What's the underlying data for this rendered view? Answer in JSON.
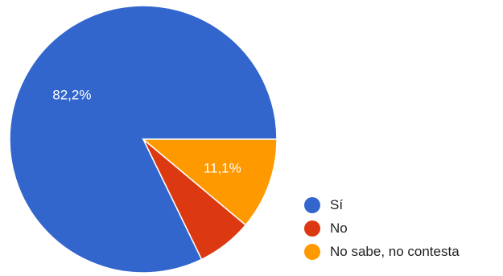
{
  "chart_data": {
    "type": "pie",
    "title": "",
    "slices": [
      {
        "label": "Sí",
        "value": 82.2,
        "value_label": "82,2%",
        "color": "#3366cc"
      },
      {
        "label": "No",
        "value": 6.7,
        "value_label": "",
        "color": "#dc3912"
      },
      {
        "label": "No sabe, no contesta",
        "value": 11.1,
        "value_label": "11,1%",
        "color": "#ff9900"
      }
    ],
    "start_angle": "90° clockwise from top (3 o'clock)",
    "legend": {
      "position": "bottom-right"
    }
  }
}
